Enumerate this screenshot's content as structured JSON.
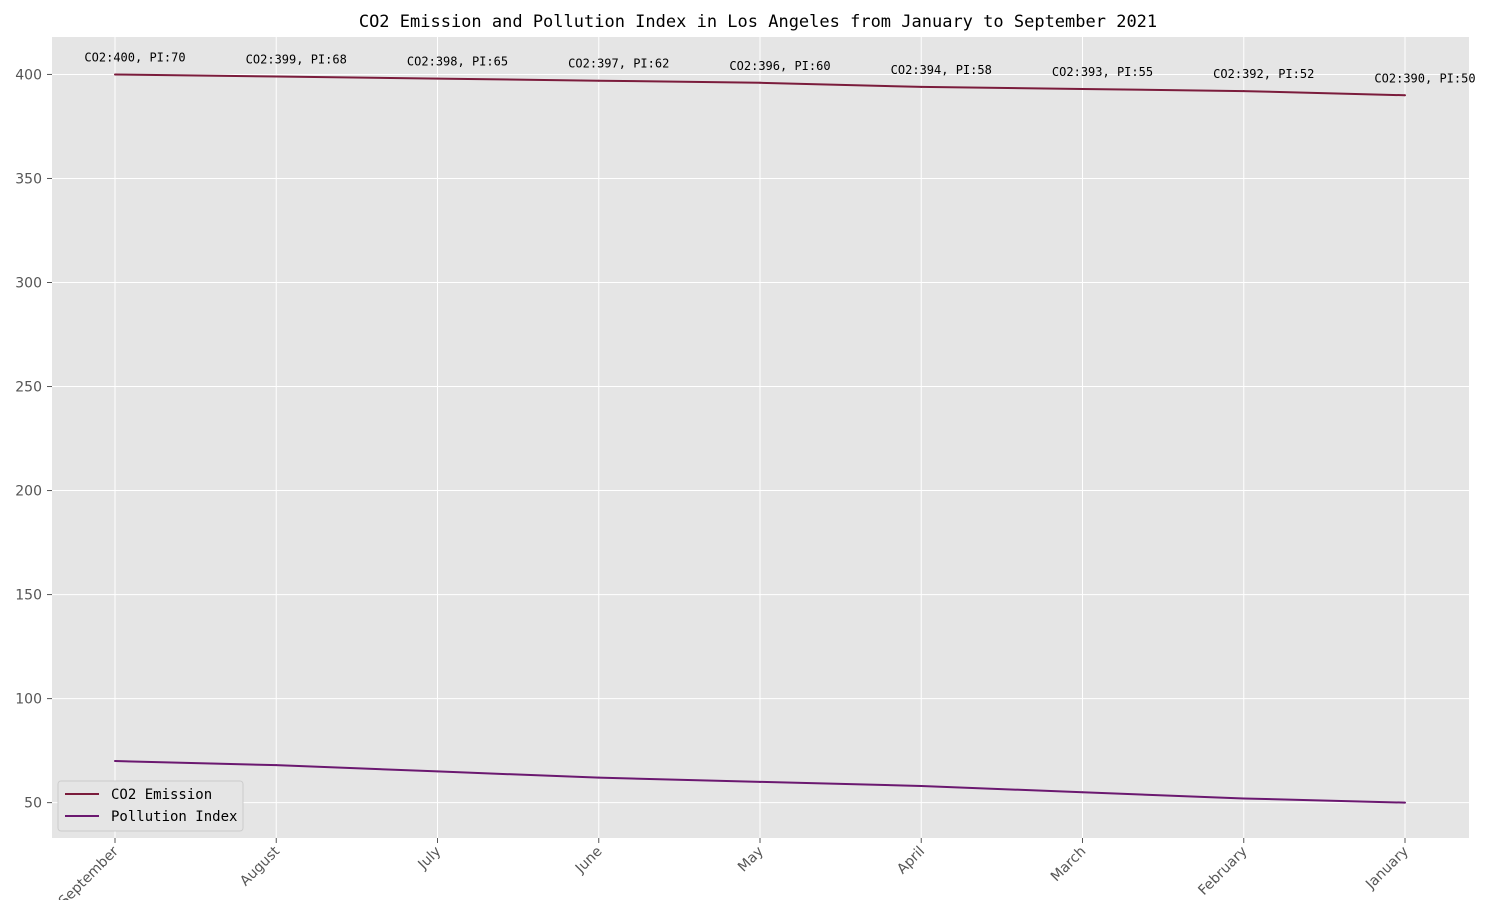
{
  "chart_data": {
    "type": "line",
    "title": "CO2 Emission and Pollution Index in Los Angeles from January to September 2021",
    "xlabel": "",
    "ylabel": "",
    "categories": [
      "September",
      "August",
      "July",
      "June",
      "May",
      "April",
      "March",
      "February",
      "January"
    ],
    "series": [
      {
        "name": "CO2 Emission",
        "color": "#7b1c3c",
        "values": [
          400,
          399,
          398,
          397,
          396,
          394,
          393,
          392,
          390
        ]
      },
      {
        "name": "Pollution Index",
        "color": "#6b1870",
        "values": [
          70,
          68,
          65,
          62,
          60,
          58,
          55,
          52,
          50
        ]
      }
    ],
    "data_labels": [
      "CO2:400, PI:70",
      "CO2:399, PI:68",
      "CO2:398, PI:65",
      "CO2:397, PI:62",
      "CO2:396, PI:60",
      "CO2:394, PI:58",
      "CO2:393, PI:55",
      "CO2:392, PI:52",
      "CO2:390, PI:50"
    ],
    "yticks": [
      50,
      100,
      150,
      200,
      250,
      300,
      350,
      400
    ],
    "ylim": [
      33,
      418
    ],
    "grid": true,
    "legend_position": "lower-left",
    "background_color": "#e5e5e5"
  }
}
